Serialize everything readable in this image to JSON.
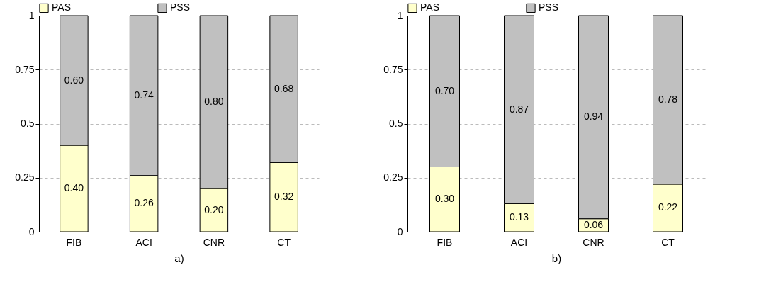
{
  "chart_data": [
    {
      "type": "bar",
      "stacked": true,
      "xlabel": "a)",
      "categories": [
        "FIB",
        "ACI",
        "CNR",
        "CT"
      ],
      "ylim": [
        0,
        1
      ],
      "yticks": [
        0,
        0.25,
        0.5,
        0.75,
        1
      ],
      "grid": "y",
      "legend": "top",
      "series": [
        {
          "name": "PAS",
          "color": "#ffffcc",
          "values": [
            0.4,
            0.26,
            0.2,
            0.32
          ],
          "value_labels": [
            "0.40",
            "0.26",
            "0.20",
            "0.32"
          ]
        },
        {
          "name": "PSS",
          "color": "#c0c0c0",
          "values": [
            0.6,
            0.74,
            0.8,
            0.68
          ],
          "value_labels": [
            "0.60",
            "0.74",
            "0.80",
            "0.68"
          ]
        }
      ]
    },
    {
      "type": "bar",
      "stacked": true,
      "xlabel": "b)",
      "categories": [
        "FIB",
        "ACI",
        "CNR",
        "CT"
      ],
      "ylim": [
        0,
        1
      ],
      "yticks": [
        0,
        0.25,
        0.5,
        0.75,
        1
      ],
      "grid": "y",
      "legend": "top",
      "series": [
        {
          "name": "PAS",
          "color": "#ffffcc",
          "values": [
            0.3,
            0.13,
            0.06,
            0.22
          ],
          "value_labels": [
            "0.30",
            "0.13",
            "0.06",
            "0.22"
          ]
        },
        {
          "name": "PSS",
          "color": "#c0c0c0",
          "values": [
            0.7,
            0.87,
            0.94,
            0.78
          ],
          "value_labels": [
            "0.70",
            "0.87",
            "0.94",
            "0.78"
          ]
        }
      ]
    }
  ]
}
